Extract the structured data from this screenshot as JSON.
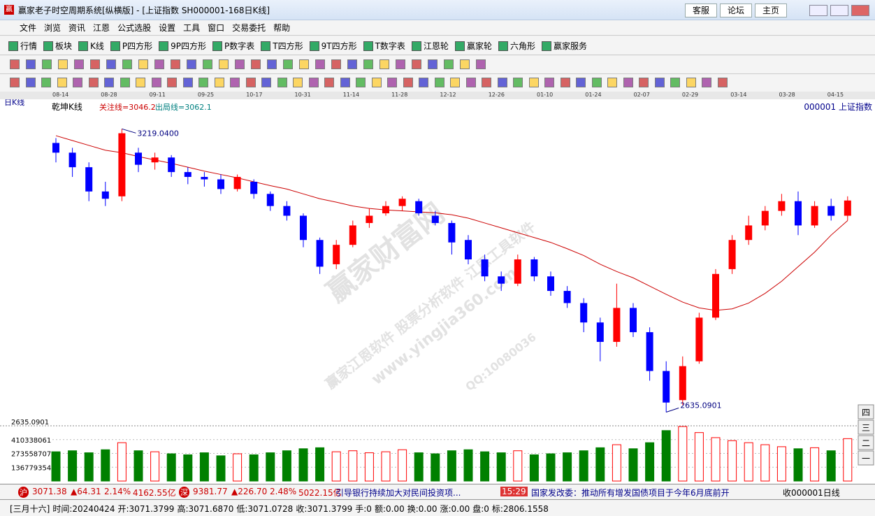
{
  "window": {
    "title": "赢家老子时空周期系统[纵横版] - [上证指数  SH000001-168日K线]",
    "links": [
      "客服",
      "论坛",
      "主页"
    ]
  },
  "menu": [
    "文件",
    "浏览",
    "资讯",
    "江恩",
    "公式选股",
    "设置",
    "工具",
    "窗口",
    "交易委托",
    "帮助"
  ],
  "toolbar": [
    "行情",
    "板块",
    "K线",
    "P四方形",
    "9P四方形",
    "P数字表",
    "T四方形",
    "9T四方形",
    "T数字表",
    "江恩轮",
    "赢家轮",
    "六角形",
    "赢家服务"
  ],
  "date_labels": [
    "08-14",
    "08-28",
    "09-11",
    "09-25",
    "10-17",
    "10-31",
    "11-14",
    "11-28",
    "12-12",
    "12-26",
    "01-10",
    "01-24",
    "02-07",
    "02-29",
    "03-14",
    "03-28",
    "04-15"
  ],
  "pane_buttons": [
    "四",
    "三",
    "二",
    "一"
  ],
  "watermarks": [
    "赢家财富网",
    "赢家江恩软件 股票分析软件 江恩工具软件",
    "www.yingjia360.com",
    "QQ:10080036"
  ],
  "chart_data": {
    "type": "candlestick",
    "period_label": "日K线",
    "indicator_name": "乾坤K线",
    "indicators": [
      "关注线=3046.2",
      "出局线=3062.1"
    ],
    "symbol": "000001 上证指数",
    "up_color": "#ff0000",
    "down_color": "#0000ff",
    "ylim": [
      2620,
      3280
    ],
    "candles": {
      "open": [
        3190,
        3170,
        3140,
        3090,
        3080,
        3170,
        3150,
        3160,
        3130,
        3120,
        3115,
        3095,
        3110,
        3085,
        3060,
        3040,
        2990,
        2940,
        2980,
        3025,
        3045,
        3060,
        3070,
        3040,
        3025,
        2990,
        2950,
        2915,
        2900,
        2950,
        2915,
        2885,
        2860,
        2820,
        2780,
        2850,
        2800,
        2720,
        2660,
        2740,
        2830,
        2930,
        2990,
        3020,
        3050,
        3070,
        3020,
        3060,
        3040
      ],
      "close": [
        3170,
        3140,
        3090,
        3075,
        3210,
        3145,
        3160,
        3130,
        3120,
        3115,
        3095,
        3120,
        3085,
        3060,
        3040,
        2990,
        2935,
        2980,
        3020,
        3040,
        3060,
        3075,
        3045,
        3025,
        2985,
        2950,
        2915,
        2900,
        2950,
        2915,
        2885,
        2860,
        2820,
        2780,
        2850,
        2800,
        2720,
        2655,
        2730,
        2830,
        2920,
        2990,
        3020,
        3050,
        3070,
        3020,
        3060,
        3040,
        3071.38
      ],
      "high": [
        3200,
        3180,
        3150,
        3110,
        3219.04,
        3180,
        3170,
        3165,
        3140,
        3130,
        3125,
        3125,
        3115,
        3090,
        3070,
        3045,
        2995,
        2990,
        3030,
        3055,
        3070,
        3080,
        3075,
        3050,
        3030,
        3000,
        2960,
        2925,
        2960,
        2955,
        2925,
        2895,
        2870,
        2830,
        2900,
        2860,
        2810,
        2740,
        2750,
        2840,
        2930,
        3000,
        3040,
        3060,
        3085,
        3090,
        3070,
        3075,
        3080
      ],
      "low": [
        3150,
        3120,
        3070,
        3060,
        3070,
        3130,
        3135,
        3120,
        3105,
        3100,
        3085,
        3090,
        3075,
        3050,
        3030,
        2975,
        2920,
        2930,
        2975,
        3015,
        3040,
        3050,
        3040,
        3020,
        2960,
        2940,
        2905,
        2885,
        2895,
        2905,
        2875,
        2850,
        2800,
        2740,
        2770,
        2790,
        2700,
        2635.09,
        2650,
        2735,
        2825,
        2920,
        2980,
        3010,
        3040,
        3000,
        3015,
        3030,
        3030
      ]
    },
    "ma": {
      "color": "#cc0000",
      "values": [
        3205,
        3195,
        3185,
        3175,
        3170,
        3162,
        3155,
        3148,
        3140,
        3132,
        3125,
        3118,
        3110,
        3102,
        3095,
        3085,
        3075,
        3068,
        3060,
        3055,
        3052,
        3050,
        3048,
        3046,
        3042,
        3035,
        3025,
        3015,
        3005,
        2995,
        2985,
        2972,
        2958,
        2940,
        2925,
        2912,
        2895,
        2878,
        2862,
        2850,
        2845,
        2848,
        2860,
        2880,
        2905,
        2935,
        2965,
        3000,
        3030
      ]
    },
    "annotations": [
      {
        "value": 3219.04,
        "label": "3219.0400"
      },
      {
        "value": 2635.0901,
        "label": "2635.0901"
      }
    ],
    "volume": {
      "ylim": [
        0,
        547117415
      ],
      "yticks": [
        410338061,
        273558707,
        136779354
      ],
      "up_color": "#ff0000",
      "down_color": "#008000",
      "values": [
        290000000,
        300000000,
        280000000,
        310000000,
        380000000,
        300000000,
        290000000,
        270000000,
        260000000,
        280000000,
        250000000,
        270000000,
        260000000,
        280000000,
        300000000,
        320000000,
        330000000,
        290000000,
        300000000,
        280000000,
        290000000,
        310000000,
        280000000,
        270000000,
        300000000,
        310000000,
        290000000,
        280000000,
        300000000,
        260000000,
        270000000,
        280000000,
        300000000,
        330000000,
        360000000,
        320000000,
        380000000,
        500000000,
        540000000,
        480000000,
        430000000,
        400000000,
        380000000,
        360000000,
        340000000,
        320000000,
        330000000,
        300000000,
        420000000
      ]
    }
  },
  "ticker": {
    "sh": [
      "沪",
      "3071.38",
      "▲64.31",
      "2.14%",
      "4162.55亿"
    ],
    "sz": [
      "深",
      "9381.77",
      "▲226.70",
      "2.48%",
      "5022.15亿"
    ],
    "news": [
      "引导银行持续加大对民间投资项...",
      "15:29",
      "国家发改委：推动所有增发国债项目于今年6月底前开"
    ],
    "right": "收000001日线"
  },
  "status": [
    "[三月十六]",
    "时间:20240424",
    "开:3071.3799",
    "高:3071.6870",
    "低:3071.0728",
    "收:3071.3799",
    "手:0",
    "额:0.00",
    "换:0.00",
    "涨:0.00",
    "盘:0",
    "标:2806.1558"
  ]
}
